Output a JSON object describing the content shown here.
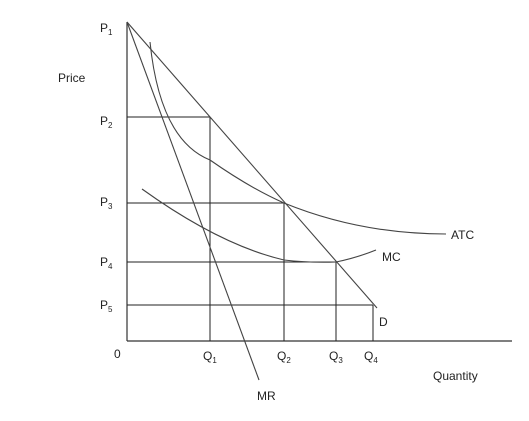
{
  "axes": {
    "y_label": "Price",
    "x_label": "Quantity",
    "origin_label": "0"
  },
  "price_levels": [
    {
      "letter": "P",
      "sub": "1"
    },
    {
      "letter": "P",
      "sub": "2"
    },
    {
      "letter": "P",
      "sub": "3"
    },
    {
      "letter": "P",
      "sub": "4"
    },
    {
      "letter": "P",
      "sub": "5"
    }
  ],
  "quantity_levels": [
    {
      "letter": "Q",
      "sub": "1"
    },
    {
      "letter": "Q",
      "sub": "2"
    },
    {
      "letter": "Q",
      "sub": "3"
    },
    {
      "letter": "Q",
      "sub": "4"
    }
  ],
  "curves": {
    "atc": "ATC",
    "mc": "MC",
    "mr": "MR",
    "demand": "D"
  },
  "colors": {
    "lines": "#444444",
    "text": "#222222",
    "background": "#ffffff"
  }
}
